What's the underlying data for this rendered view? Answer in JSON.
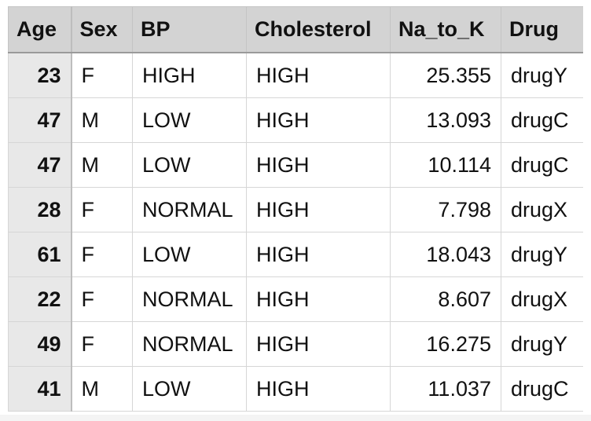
{
  "table": {
    "columns": [
      "Age",
      "Sex",
      "BP",
      "Cholesterol",
      "Na_to_K",
      "Drug"
    ],
    "rows": [
      [
        "23",
        "F",
        "HIGH",
        "HIGH",
        "25.355",
        "drugY"
      ],
      [
        "47",
        "M",
        "LOW",
        "HIGH",
        "13.093",
        "drugC"
      ],
      [
        "47",
        "M",
        "LOW",
        "HIGH",
        "10.114",
        "drugC"
      ],
      [
        "28",
        "F",
        "NORMAL",
        "HIGH",
        "7.798",
        "drugX"
      ],
      [
        "61",
        "F",
        "LOW",
        "HIGH",
        "18.043",
        "drugY"
      ],
      [
        "22",
        "F",
        "NORMAL",
        "HIGH",
        "8.607",
        "drugX"
      ],
      [
        "49",
        "F",
        "NORMAL",
        "HIGH",
        "16.275",
        "drugY"
      ],
      [
        "41",
        "M",
        "LOW",
        "HIGH",
        "11.037",
        "drugC"
      ]
    ]
  },
  "colors": {
    "header_bg": "#d3d3d3",
    "index_bg": "#e8e8e8",
    "grid": "#d6d6d6"
  }
}
